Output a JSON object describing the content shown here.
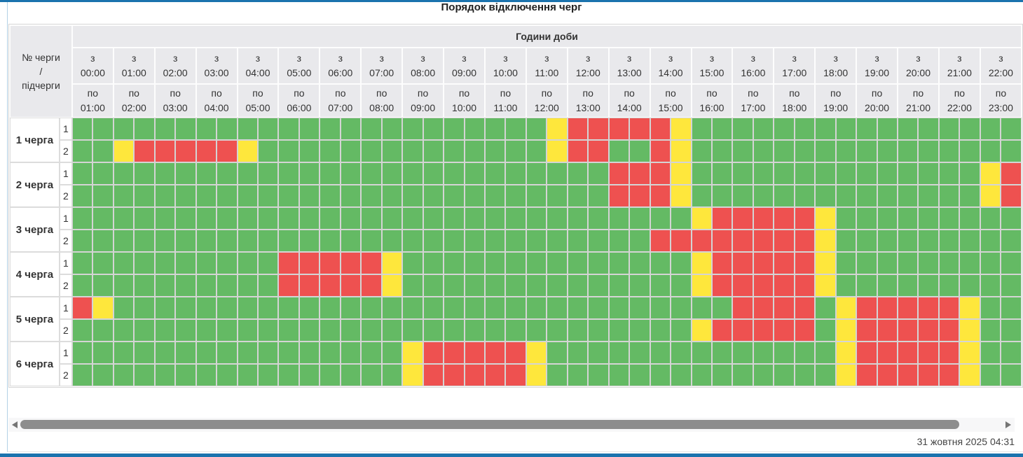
{
  "page": {
    "title": "Порядок відключення черг",
    "timestamp": "31 жовтня 2025 04:31",
    "accent_color": "#1b73ae"
  },
  "icons": {
    "scroll_left": "left-triangle",
    "scroll_right": "right-triangle"
  },
  "table": {
    "hours_title": "Години доби",
    "corner": {
      "line1": "№ черги",
      "line2": "/",
      "line3": "підчерги"
    },
    "from_prefix": "з",
    "to_prefix": "по",
    "hours": [
      {
        "from": "00:00",
        "to": "01:00"
      },
      {
        "from": "01:00",
        "to": "02:00"
      },
      {
        "from": "02:00",
        "to": "03:00"
      },
      {
        "from": "03:00",
        "to": "04:00"
      },
      {
        "from": "04:00",
        "to": "05:00"
      },
      {
        "from": "05:00",
        "to": "06:00"
      },
      {
        "from": "06:00",
        "to": "07:00"
      },
      {
        "from": "07:00",
        "to": "08:00"
      },
      {
        "from": "08:00",
        "to": "09:00"
      },
      {
        "from": "09:00",
        "to": "10:00"
      },
      {
        "from": "10:00",
        "to": "11:00"
      },
      {
        "from": "11:00",
        "to": "12:00"
      },
      {
        "from": "12:00",
        "to": "13:00"
      },
      {
        "from": "13:00",
        "to": "14:00"
      },
      {
        "from": "14:00",
        "to": "15:00"
      },
      {
        "from": "15:00",
        "to": "16:00"
      },
      {
        "from": "16:00",
        "to": "17:00"
      },
      {
        "from": "17:00",
        "to": "18:00"
      },
      {
        "from": "18:00",
        "to": "19:00"
      },
      {
        "from": "19:00",
        "to": "20:00"
      },
      {
        "from": "20:00",
        "to": "21:00"
      },
      {
        "from": "21:00",
        "to": "22:00"
      },
      {
        "from": "22:00",
        "to": "23:00"
      }
    ],
    "cell_minutes": 30,
    "status_colors": {
      "available": "#64ba64",
      "outage": "#ee5150",
      "possible_outage": "#fee73c"
    },
    "queues": [
      {
        "label": "1 черга",
        "subqueues": [
          {
            "label": "1",
            "cells_rle": "23g,1y,5r,1y,16g"
          },
          {
            "label": "2",
            "cells_rle": "2g,1y,5r,1y,14g,1y,2r,2g,1r,1y,16g"
          }
        ]
      },
      {
        "label": "2 черга",
        "subqueues": [
          {
            "label": "1",
            "cells_rle": "26g,3r,1y,14g,1y,1r"
          },
          {
            "label": "2",
            "cells_rle": "26g,3r,1y,14g,1y,1r"
          }
        ]
      },
      {
        "label": "3 черга",
        "subqueues": [
          {
            "label": "1",
            "cells_rle": "30g,1y,5r,1y,9g"
          },
          {
            "label": "2",
            "cells_rle": "28g,8r,1y,9g"
          }
        ]
      },
      {
        "label": "4 черга",
        "subqueues": [
          {
            "label": "1",
            "cells_rle": "10g,5r,1y,14g,1y,5r,1y,9g"
          },
          {
            "label": "2",
            "cells_rle": "10g,5r,1y,14g,1y,5r,1y,9g"
          }
        ]
      },
      {
        "label": "5 черга",
        "subqueues": [
          {
            "label": "1",
            "cells_rle": "1r,1y,30g,4r,1g,1y,5r,1y,2g"
          },
          {
            "label": "2",
            "cells_rle": "30g,1y,5r,1g,1y,5r,1y,2g"
          }
        ]
      },
      {
        "label": "6 черга",
        "subqueues": [
          {
            "label": "1",
            "cells_rle": "16g,1y,5r,1y,14g,1y,5r,1y,2g"
          },
          {
            "label": "2",
            "cells_rle": "16g,1y,5r,1y,14g,1y,5r,1y,2g"
          }
        ]
      }
    ]
  }
}
